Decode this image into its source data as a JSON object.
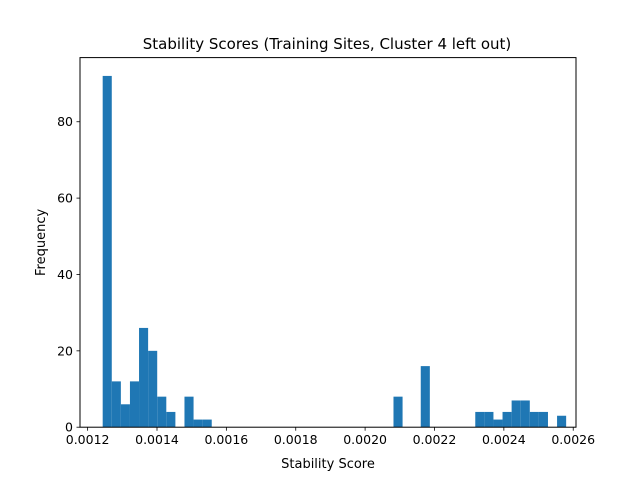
{
  "chart_data": {
    "type": "bar",
    "title": "Stability Scores (Training Sites, Cluster 4 left out)",
    "xlabel": "Stability Score",
    "ylabel": "Frequency",
    "xlim": [
      0.001178,
      0.002608
    ],
    "ylim": [
      0,
      96.8
    ],
    "xticks": [
      0.0012,
      0.0014,
      0.0016,
      0.0018,
      0.002,
      0.0022,
      0.0024,
      0.0026
    ],
    "xtick_labels": [
      "0.0012",
      "0.0014",
      "0.0016",
      "0.0018",
      "0.0020",
      "0.0022",
      "0.0024",
      "0.0026"
    ],
    "yticks": [
      0,
      20,
      40,
      60,
      80
    ],
    "ytick_labels": [
      "0",
      "20",
      "40",
      "60",
      "80"
    ],
    "bin_start": 0.0012434,
    "bin_width": 2.62e-05,
    "values": [
      92,
      12,
      6,
      12,
      26,
      20,
      8,
      4,
      0,
      8,
      2,
      2,
      0,
      0,
      0,
      0,
      0,
      0,
      0,
      0,
      0,
      0,
      0,
      0,
      0,
      0,
      0,
      0,
      0,
      0,
      0,
      0,
      8,
      0,
      0,
      16,
      0,
      0,
      0,
      0,
      0,
      4,
      4,
      2,
      4,
      7,
      7,
      4,
      4,
      0,
      3
    ],
    "bar_color": "#1f77b4",
    "grid": false,
    "legend": "none"
  }
}
